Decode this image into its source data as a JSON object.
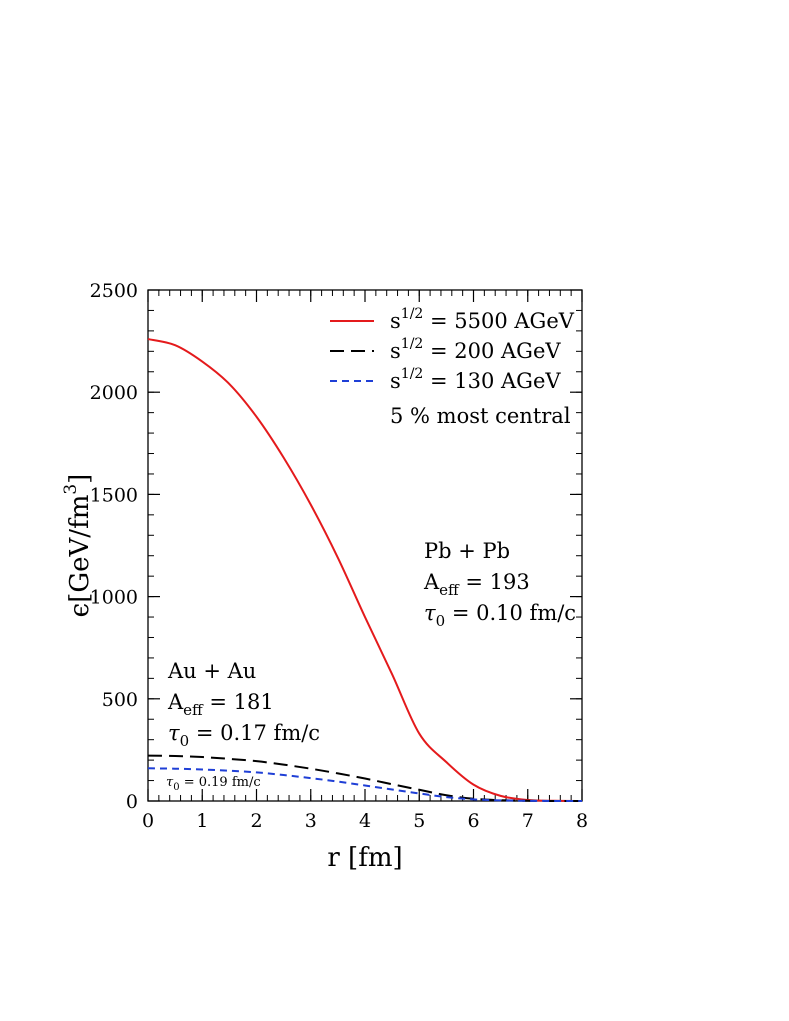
{
  "chart_data": {
    "type": "line",
    "title": "",
    "xlabel": "r [fm]",
    "ylabel_parts": {
      "prefix": "ϵ[GeV/fm",
      "sup": "3",
      "suffix": "]"
    },
    "xlim": [
      0,
      8
    ],
    "ylim": [
      0,
      2500
    ],
    "x_ticks": [
      0,
      1,
      2,
      3,
      4,
      5,
      6,
      7,
      8
    ],
    "y_ticks": [
      0,
      500,
      1000,
      1500,
      2000,
      2500
    ],
    "x_minor_step": 0.2,
    "y_minor_step": 100,
    "grid": false,
    "legend_position": "top-right",
    "series": [
      {
        "name": "s^{1/2} = 5500 AGeV",
        "color": "#e41a1c",
        "dash": "solid",
        "legend": {
          "base": "s",
          "sup": "1/2",
          "rest": " = 5500 AGeV"
        },
        "x": [
          0,
          0.5,
          1,
          1.5,
          2,
          2.5,
          3,
          3.5,
          4,
          4.5,
          5,
          5.5,
          6,
          6.5,
          7,
          7.5,
          8
        ],
        "y": [
          2260,
          2230,
          2150,
          2040,
          1880,
          1680,
          1450,
          1190,
          900,
          620,
          330,
          190,
          80,
          25,
          5,
          1,
          0
        ]
      },
      {
        "name": "s^{1/2} = 200 AGeV",
        "color": "#000000",
        "dash": "long-dash",
        "legend": {
          "base": "s",
          "sup": "1/2",
          "rest": " = 200 AGeV"
        },
        "x": [
          0,
          0.5,
          1,
          1.5,
          2,
          2.5,
          3,
          3.5,
          4,
          4.5,
          5,
          5.5,
          6,
          6.5,
          7,
          7.5,
          8
        ],
        "y": [
          222,
          220,
          215,
          206,
          195,
          178,
          158,
          135,
          110,
          82,
          55,
          28,
          11,
          4,
          1,
          0,
          0
        ]
      },
      {
        "name": "s^{1/2} = 130 AGeV",
        "color": "#1f3fd6",
        "dash": "short-dash",
        "legend": {
          "base": "s",
          "sup": "1/2",
          "rest": " = 130 AGeV"
        },
        "x": [
          0,
          0.5,
          1,
          1.5,
          2,
          2.5,
          3,
          3.5,
          4,
          4.5,
          5,
          5.5,
          6,
          6.5,
          7,
          7.5,
          8
        ],
        "y": [
          160,
          158,
          154,
          148,
          140,
          127,
          112,
          95,
          76,
          56,
          37,
          19,
          8,
          3,
          1,
          0,
          0
        ]
      }
    ],
    "legend_note": "5 % most central",
    "annotations": {
      "pbpb": {
        "line1": "Pb + Pb",
        "aeff_base": "A",
        "aeff_sub": "eff",
        "aeff_rest": " = 193",
        "tau_base": "τ",
        "tau_sub": "0",
        "tau_rest": " = 0.10 fm/c"
      },
      "auau": {
        "line1": "Au + Au",
        "aeff_base": "A",
        "aeff_sub": "eff",
        "aeff_rest": " = 181",
        "tau_base": "τ",
        "tau_sub": "0",
        "tau_rest": " = 0.17 fm/c"
      },
      "small_tau": {
        "tau_base": "τ",
        "tau_sub": "0",
        "tau_rest": " = 0.19 fm/c"
      }
    }
  }
}
